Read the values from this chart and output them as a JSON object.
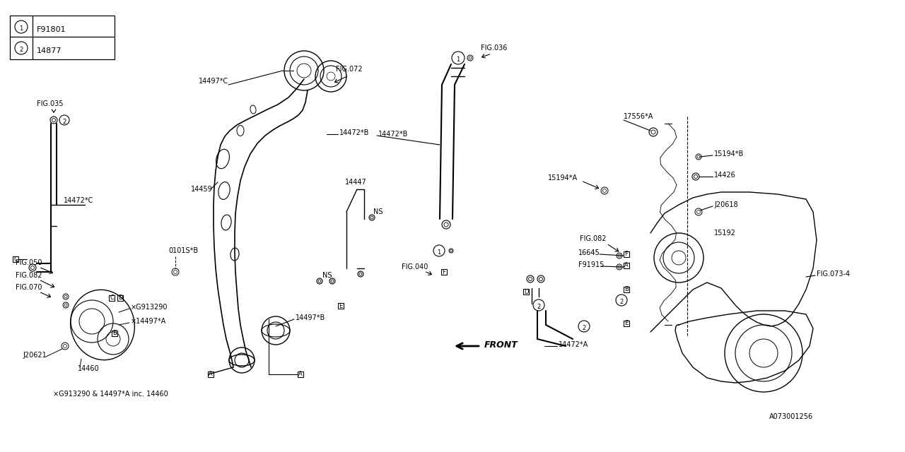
{
  "bg_color": "#ffffff",
  "line_color": "#000000",
  "fig_number": "A073001256",
  "legend": [
    {
      "num": "1",
      "part": "F91801"
    },
    {
      "num": "2",
      "part": "14877"
    }
  ]
}
